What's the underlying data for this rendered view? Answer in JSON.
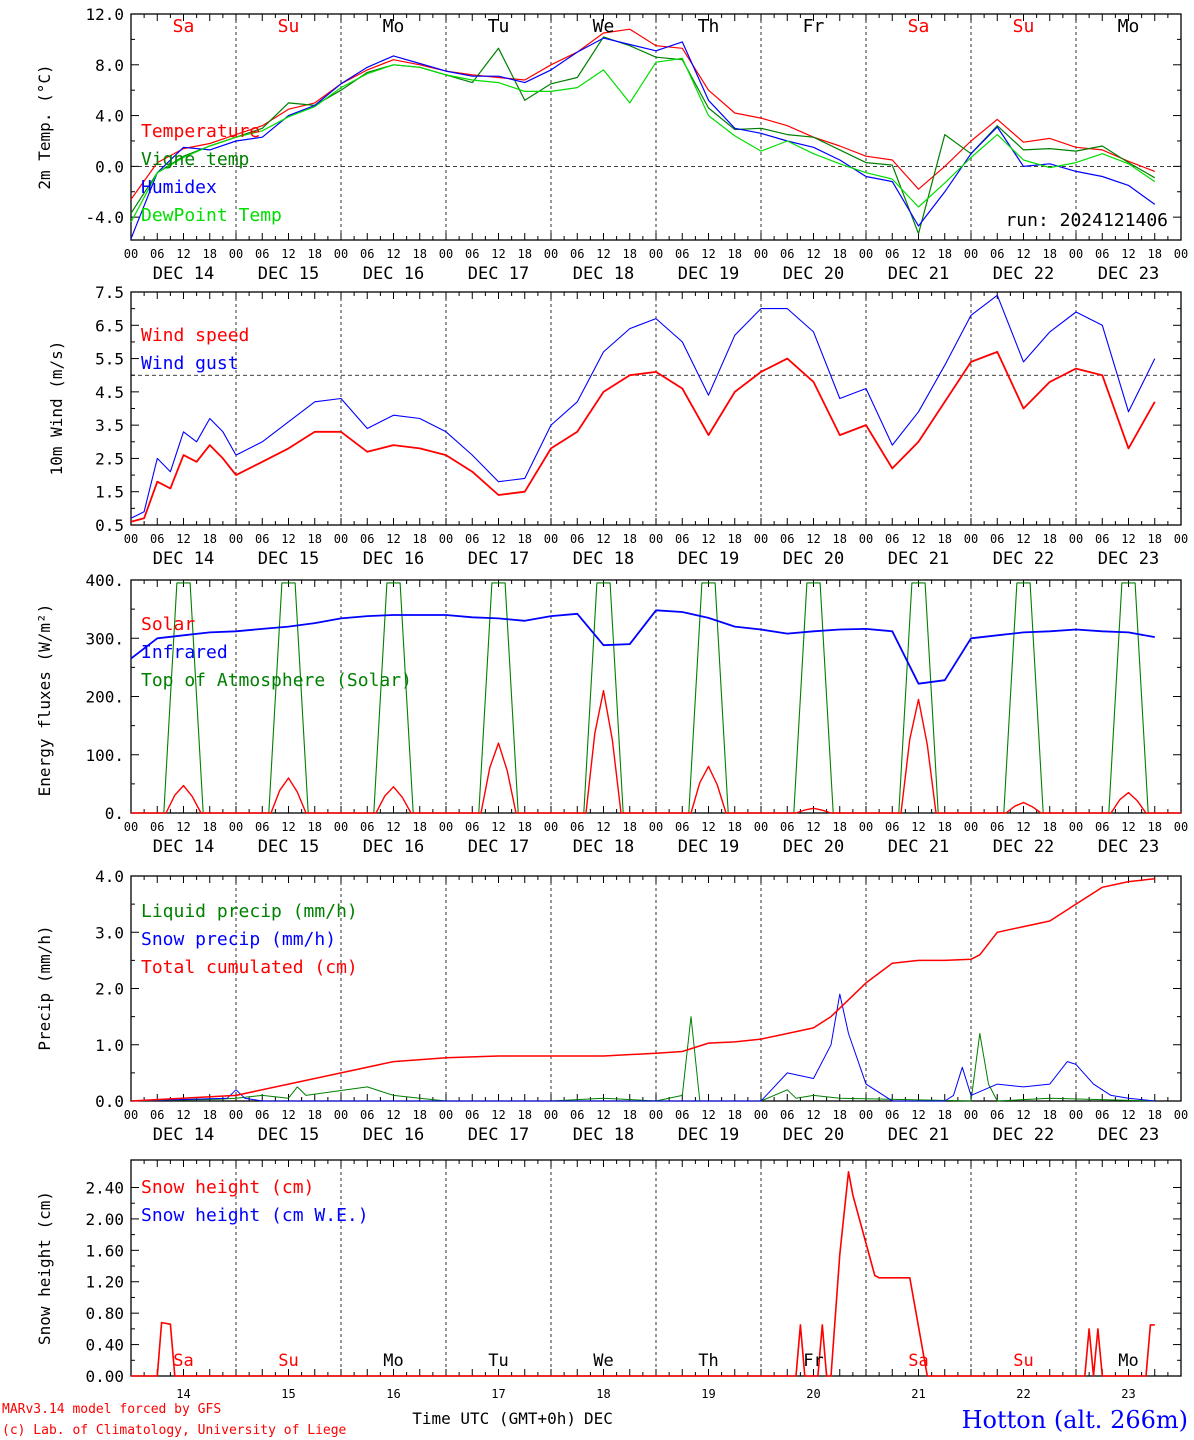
{
  "footer": {
    "credit_line1": "MARv3.14 model forced by GFS",
    "credit_line2": "(c) Lab. of Climatology, University of Liege",
    "xlabel": "Time UTC (GMT+0h)",
    "month": "DEC",
    "station": "Hotton (alt. 266m)"
  },
  "colors": {
    "red": "#ff0000",
    "green": "#008000",
    "blue": "#0000ff",
    "lightgreen": "#00dd00",
    "axis": "#000000"
  },
  "days": [
    "DEC 14",
    "DEC 15",
    "DEC 16",
    "DEC 17",
    "DEC 18",
    "DEC 19",
    "DEC 20",
    "DEC 21",
    "DEC 22",
    "DEC 23"
  ],
  "bottom_days": [
    "14",
    "15",
    "16",
    "17",
    "18",
    "19",
    "20",
    "21",
    "22",
    "23"
  ],
  "weekdays": [
    "Sa",
    "Su",
    "Mo",
    "Tu",
    "We",
    "Th",
    "Fr",
    "Sa",
    "Su",
    "Mo"
  ],
  "weekday_colors": [
    "#ff0000",
    "#ff0000",
    "#000000",
    "#000000",
    "#000000",
    "#000000",
    "#000000",
    "#ff0000",
    "#ff0000",
    "#000000"
  ],
  "hour_ticks": [
    "00",
    "06",
    "12",
    "18"
  ],
  "chart_data": [
    {
      "type": "line",
      "ylabel": "2m Temp. (°C)",
      "ylim": [
        -5.8,
        12.0
      ],
      "yticks": [
        -4.0,
        0.0,
        4.0,
        8.0,
        12.0
      ],
      "ytick_labels": [
        "-4.0",
        "0.0",
        "4.0",
        "8.0",
        "12.0"
      ],
      "ref_line": 0.0,
      "annotation": "run: 2024121406",
      "x_hours": [
        0,
        6,
        12,
        18,
        24,
        30,
        36,
        42,
        48,
        54,
        60,
        66,
        72,
        78,
        84,
        90,
        96,
        102,
        108,
        114,
        120,
        126,
        132,
        138,
        144,
        150,
        156,
        162,
        168,
        174,
        180,
        186,
        192,
        198,
        204,
        210,
        216,
        222,
        228,
        234
      ],
      "series": [
        {
          "name": "Temperature",
          "color": "#ff0000",
          "values": [
            -2.6,
            0.3,
            1.4,
            1.8,
            2.5,
            3.2,
            4.5,
            5.0,
            6.5,
            7.6,
            8.4,
            8.0,
            7.5,
            7.2,
            7.0,
            6.8,
            8.0,
            9.0,
            10.5,
            10.8,
            9.5,
            9.3,
            6.0,
            4.2,
            3.8,
            3.2,
            2.3,
            1.6,
            0.8,
            0.5,
            -1.8,
            0.0,
            2.0,
            3.7,
            1.9,
            2.2,
            1.5,
            1.3,
            0.4,
            -0.4
          ]
        },
        {
          "name": "Vigne temp",
          "color": "#008000",
          "values": [
            -3.7,
            -0.5,
            0.8,
            1.6,
            2.3,
            3.0,
            5.0,
            4.8,
            6.0,
            7.4,
            8.0,
            7.8,
            7.2,
            6.6,
            9.3,
            5.2,
            6.5,
            7.0,
            10.2,
            9.5,
            8.6,
            8.4,
            4.6,
            2.9,
            3.0,
            2.5,
            2.3,
            1.3,
            0.3,
            0.1,
            -5.3,
            2.5,
            1.0,
            3.2,
            1.3,
            1.4,
            1.2,
            1.6,
            0.3,
            -0.9
          ]
        },
        {
          "name": "Humidex",
          "color": "#0000ff",
          "values": [
            -5.7,
            -0.5,
            1.5,
            1.3,
            2.0,
            2.3,
            4.0,
            4.8,
            6.5,
            7.8,
            8.7,
            8.1,
            7.5,
            7.1,
            7.1,
            6.6,
            7.6,
            9.0,
            10.1,
            9.6,
            9.1,
            9.8,
            5.2,
            3.0,
            2.6,
            2.0,
            1.5,
            0.5,
            -0.8,
            -1.2,
            -4.7,
            -2.0,
            1.0,
            3.1,
            0.0,
            0.2,
            -0.4,
            -0.8,
            -1.5,
            -3.0
          ]
        },
        {
          "name": "DewPoint Temp",
          "color": "#00dd00",
          "values": [
            -4.4,
            -0.5,
            0.7,
            1.6,
            2.3,
            2.8,
            3.9,
            4.7,
            6.2,
            7.3,
            8.0,
            7.8,
            7.2,
            6.8,
            6.6,
            5.9,
            5.9,
            6.2,
            7.6,
            5.0,
            8.2,
            8.5,
            4.0,
            2.4,
            1.2,
            2.0,
            1.0,
            0.2,
            -0.5,
            -1.0,
            -3.2,
            -1.3,
            0.7,
            2.5,
            0.5,
            -0.1,
            0.3,
            1.0,
            0.2,
            -1.2
          ]
        }
      ]
    },
    {
      "type": "line",
      "ylabel": "10m Wind (m/s)",
      "ylim": [
        0.5,
        7.5
      ],
      "yticks": [
        0.5,
        1.5,
        2.5,
        3.5,
        4.5,
        5.5,
        6.5,
        7.5
      ],
      "ytick_labels": [
        "0.5",
        "1.5",
        "2.5",
        "3.5",
        "4.5",
        "5.5",
        "6.5",
        "7.5"
      ],
      "ref_line": 5.0,
      "x_hours": [
        0,
        3,
        6,
        9,
        12,
        15,
        18,
        21,
        24,
        30,
        36,
        42,
        48,
        54,
        60,
        66,
        72,
        78,
        84,
        90,
        96,
        102,
        108,
        114,
        120,
        126,
        132,
        138,
        144,
        150,
        156,
        162,
        168,
        174,
        180,
        186,
        192,
        198,
        204,
        210,
        216,
        222,
        228,
        234
      ],
      "series": [
        {
          "name": "Wind speed",
          "color": "#ff0000",
          "values": [
            0.6,
            0.7,
            1.8,
            1.6,
            2.6,
            2.4,
            2.9,
            2.5,
            2.0,
            2.4,
            2.8,
            3.3,
            3.3,
            2.7,
            2.9,
            2.8,
            2.6,
            2.1,
            1.4,
            1.5,
            2.8,
            3.3,
            4.5,
            5.0,
            5.1,
            4.6,
            3.2,
            4.5,
            5.1,
            5.5,
            4.8,
            3.2,
            3.5,
            2.2,
            3.0,
            4.2,
            5.4,
            5.7,
            4.0,
            4.8,
            5.2,
            5.0,
            2.8,
            4.2
          ]
        },
        {
          "name": "Wind gust",
          "color": "#0000ff",
          "values": [
            0.7,
            0.9,
            2.5,
            2.1,
            3.3,
            3.0,
            3.7,
            3.3,
            2.6,
            3.0,
            3.6,
            4.2,
            4.3,
            3.4,
            3.8,
            3.7,
            3.3,
            2.6,
            1.8,
            1.9,
            3.5,
            4.2,
            5.7,
            6.4,
            6.7,
            6.0,
            4.4,
            6.2,
            7.0,
            7.0,
            6.3,
            4.3,
            4.6,
            2.9,
            3.9,
            5.3,
            6.8,
            7.4,
            5.4,
            6.3,
            6.9,
            6.5,
            3.9,
            5.5
          ]
        }
      ]
    },
    {
      "type": "line",
      "ylabel": "Energy fluxes (W/m²)",
      "ylim": [
        0,
        400
      ],
      "yticks": [
        0,
        100,
        200,
        300,
        400
      ],
      "ytick_labels": [
        "0.",
        "100.",
        "200.",
        "300.",
        "400."
      ],
      "series": [
        {
          "name": "Solar",
          "color": "#ff0000",
          "daily_peak": [
            47,
            60,
            45,
            120,
            210,
            80,
            8,
            195,
            18,
            35
          ]
        },
        {
          "name": "Infrared",
          "color": "#0000ff",
          "x_hours": [
            0,
            6,
            12,
            18,
            24,
            30,
            36,
            42,
            48,
            54,
            60,
            66,
            72,
            78,
            84,
            90,
            96,
            102,
            108,
            114,
            120,
            126,
            132,
            138,
            144,
            150,
            156,
            162,
            168,
            174,
            180,
            186,
            192,
            198,
            204,
            210,
            216,
            222,
            228,
            234
          ],
          "values": [
            265,
            300,
            305,
            310,
            312,
            316,
            320,
            326,
            334,
            338,
            340,
            340,
            340,
            336,
            334,
            330,
            338,
            342,
            288,
            290,
            348,
            345,
            335,
            320,
            315,
            308,
            312,
            315,
            316,
            312,
            222,
            228,
            300,
            305,
            310,
            312,
            315,
            312,
            310,
            302
          ]
        },
        {
          "name": "Top of Atmosphere (Solar)",
          "color": "#008000",
          "daily_peak": [
            395,
            395,
            395,
            395,
            395,
            395,
            395,
            395,
            395,
            395
          ]
        }
      ]
    },
    {
      "type": "line",
      "ylabel": "Precip (mm/h)",
      "ylim": [
        0,
        4.0
      ],
      "yticks": [
        0.0,
        1.0,
        2.0,
        3.0,
        4.0
      ],
      "ytick_labels": [
        "0.0",
        "1.0",
        "2.0",
        "3.0",
        "4.0"
      ],
      "series": [
        {
          "name": "Liquid precip (mm/h)",
          "color": "#008000",
          "x_hours": [
            0,
            20,
            24,
            30,
            36,
            38,
            40,
            54,
            60,
            66,
            72,
            96,
            108,
            120,
            126,
            128,
            130,
            144,
            150,
            152,
            156,
            162,
            192,
            194,
            196,
            198,
            210,
            234
          ],
          "values": [
            0,
            0.03,
            0.05,
            0.1,
            0.05,
            0.25,
            0.1,
            0.25,
            0.1,
            0.05,
            0,
            0,
            0.05,
            0,
            0.1,
            1.5,
            0,
            0,
            0.2,
            0.05,
            0.1,
            0.05,
            0,
            1.2,
            0.3,
            0,
            0.05,
            0
          ]
        },
        {
          "name": "Snow precip (mm/h)",
          "color": "#0000ff",
          "x_hours": [
            0,
            22,
            24,
            26,
            30,
            96,
            120,
            144,
            150,
            156,
            160,
            162,
            164,
            168,
            174,
            186,
            188,
            190,
            192,
            198,
            204,
            210,
            214,
            216,
            220,
            224,
            228,
            234
          ],
          "values": [
            0,
            0.05,
            0.2,
            0.05,
            0,
            0,
            0,
            0,
            0.5,
            0.4,
            1.0,
            1.9,
            1.2,
            0.3,
            0,
            0,
            0.1,
            0.6,
            0.1,
            0.3,
            0.25,
            0.3,
            0.7,
            0.65,
            0.3,
            0.1,
            0.05,
            0
          ]
        },
        {
          "name": "Total cumulated (cm)",
          "color": "#ff0000",
          "x_hours": [
            0,
            24,
            36,
            48,
            60,
            72,
            84,
            96,
            108,
            120,
            126,
            132,
            138,
            144,
            150,
            156,
            160,
            164,
            168,
            174,
            180,
            186,
            192,
            194,
            198,
            204,
            210,
            216,
            222,
            228,
            234
          ],
          "values": [
            0,
            0.1,
            0.3,
            0.5,
            0.7,
            0.77,
            0.8,
            0.8,
            0.8,
            0.85,
            0.88,
            1.03,
            1.05,
            1.1,
            1.2,
            1.3,
            1.5,
            1.8,
            2.1,
            2.45,
            2.5,
            2.5,
            2.52,
            2.6,
            3.0,
            3.1,
            3.2,
            3.5,
            3.8,
            3.9,
            3.95
          ]
        }
      ]
    },
    {
      "type": "line",
      "ylabel": "Snow height (cm)",
      "ylim": [
        0,
        2.75
      ],
      "yticks": [
        0.0,
        0.4,
        0.8,
        1.2,
        1.6,
        2.0,
        2.4
      ],
      "ytick_labels": [
        "0.00",
        "0.40",
        "0.80",
        "1.20",
        "1.60",
        "2.00",
        "2.40"
      ],
      "series": [
        {
          "name": "Snow height (cm)",
          "color": "#ff0000",
          "x_hours": [
            0,
            6,
            7,
            9,
            10,
            152,
            153,
            154,
            157,
            158,
            159,
            160,
            162,
            164,
            165,
            170,
            171,
            178,
            182,
            218,
            219,
            220,
            221,
            222,
            232,
            233,
            234
          ],
          "values": [
            0,
            0,
            0.68,
            0.66,
            0,
            0,
            0.65,
            0,
            0,
            0.65,
            0,
            0,
            1.55,
            2.6,
            2.3,
            1.28,
            1.25,
            1.25,
            0,
            0,
            0.6,
            0,
            0.6,
            0,
            0,
            0.65,
            0.65
          ]
        },
        {
          "name": "Snow height (cm W.E.)",
          "color": "#0000ff",
          "values": []
        }
      ]
    }
  ]
}
